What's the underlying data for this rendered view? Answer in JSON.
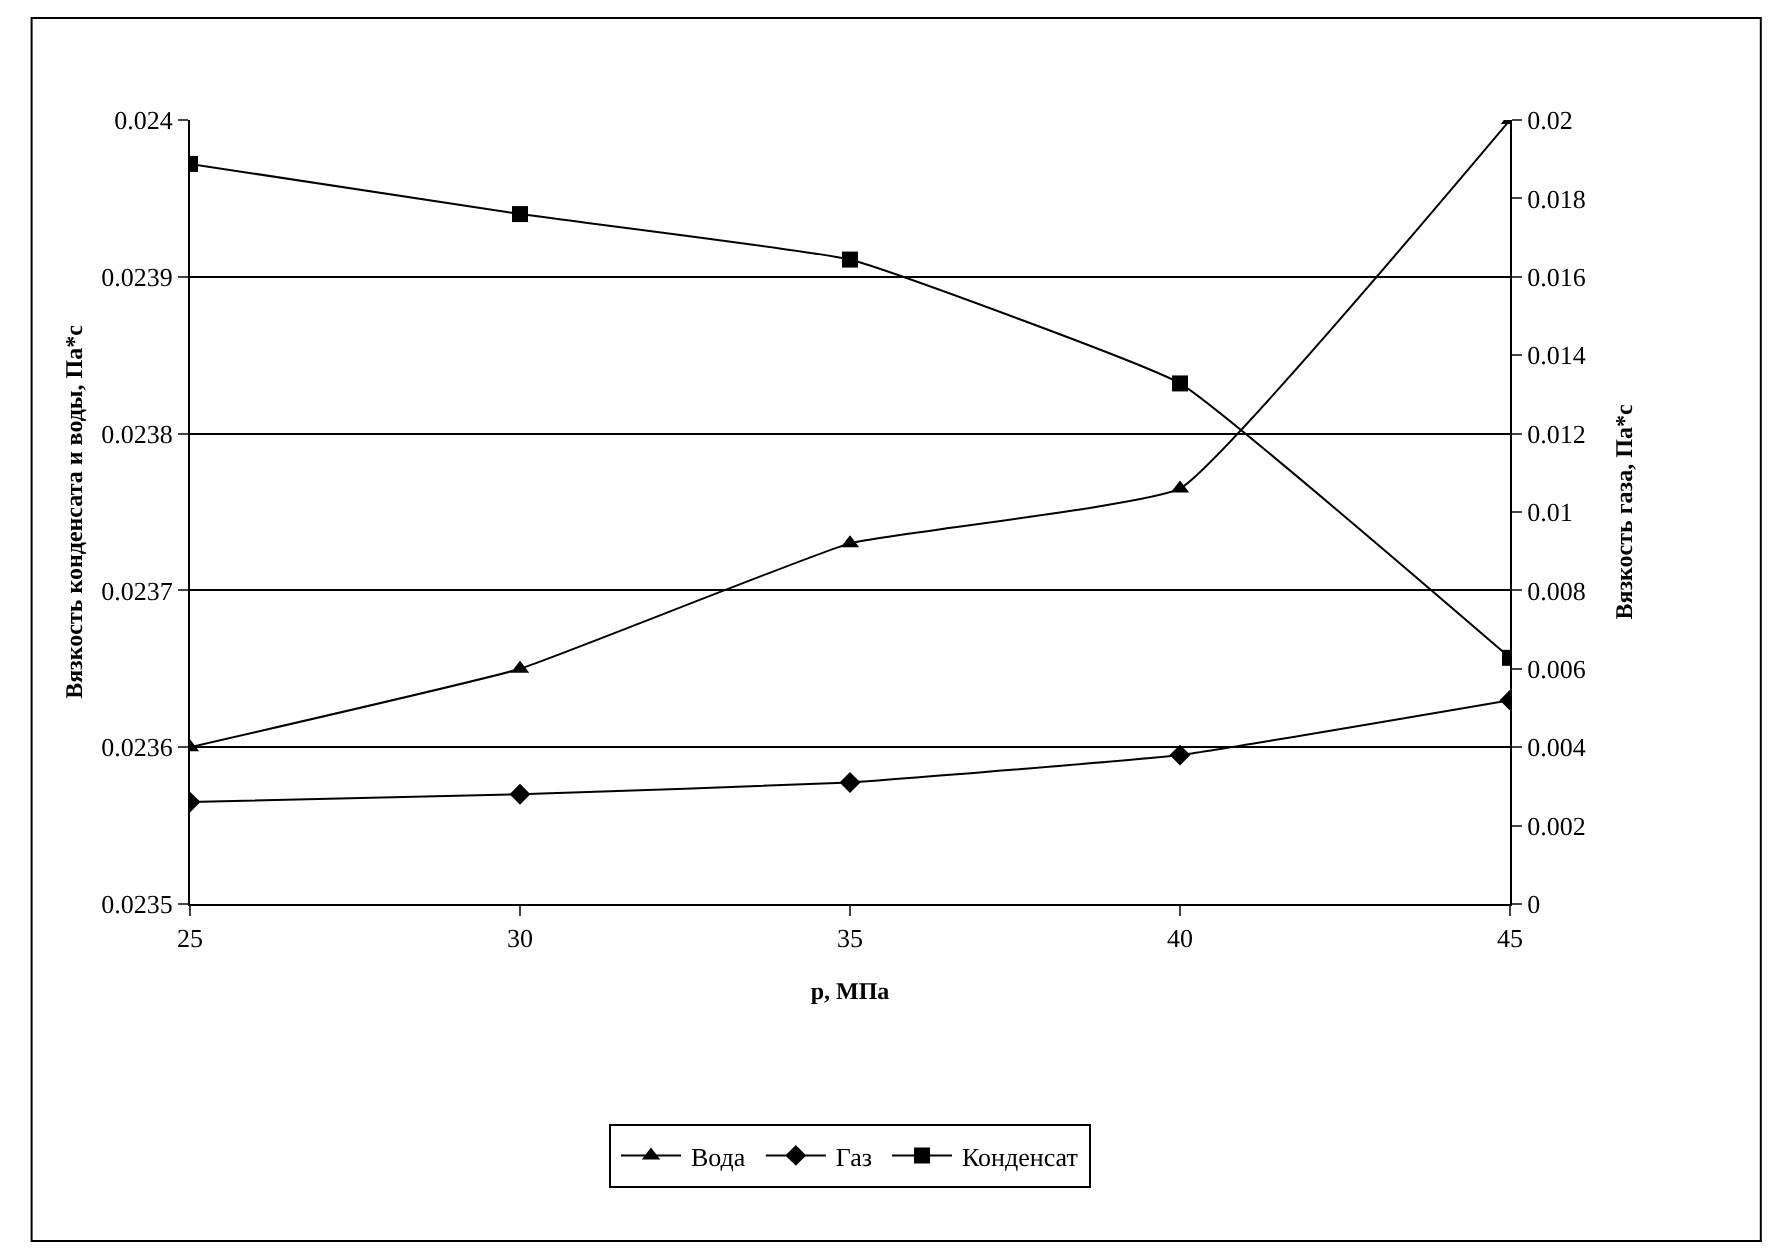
{
  "chart_data": {
    "type": "line",
    "xlabel": "p, МПа",
    "ylabel": "Вязкость конденсата и воды, Па*с",
    "y2label": "Вязкость газа, Па*с",
    "x": [
      25,
      30,
      35,
      40,
      45
    ],
    "series": [
      {
        "name": "Вода",
        "color": "#000000",
        "marker": "triangle",
        "values": [
          0.0236,
          0.02365,
          0.02373,
          0.023765,
          0.024
        ]
      },
      {
        "name": "Газ",
        "color": "#000000",
        "marker": "diamond",
        "axis": "y2",
        "values": [
          0.0026,
          0.0028,
          0.0031,
          0.0038,
          0.0052
        ]
      },
      {
        "name": "Конденсат",
        "color": "#000000",
        "marker": "square",
        "values": [
          0.023972,
          0.02394,
          0.023911,
          0.023832,
          0.023657
        ]
      }
    ],
    "xlim": [
      25,
      45
    ],
    "xticks": [
      25,
      30,
      35,
      40,
      45
    ],
    "ylim": [
      0.0235,
      0.024
    ],
    "yticks": [
      0.0235,
      0.0236,
      0.0237,
      0.0238,
      0.0239,
      0.024
    ],
    "y2lim": [
      0,
      0.02
    ],
    "y2ticks": [
      0,
      0.002,
      0.004,
      0.006,
      0.008,
      0.01,
      0.012,
      0.014,
      0.016,
      0.018,
      0.02
    ],
    "grid": "y",
    "legend": "bottom",
    "line_style": "solid"
  }
}
